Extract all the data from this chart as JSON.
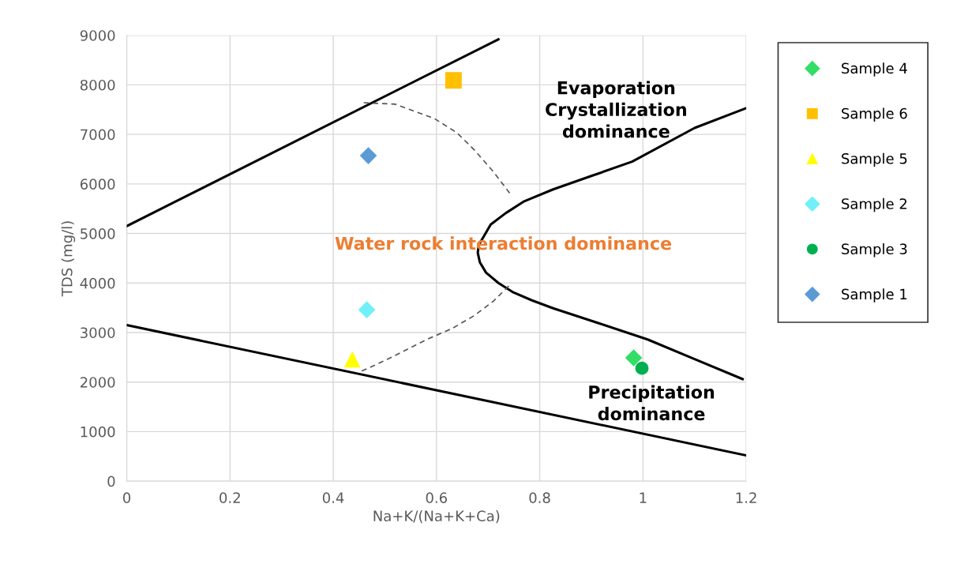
{
  "chart_data": {
    "type": "scatter",
    "xlabel": "Na+K/(Na+K+Ca)",
    "ylabel": "TDS (mg/l)",
    "xlim": [
      0,
      1.2
    ],
    "xticks": [
      0,
      {
        "value": 0.2,
        "label": "0.2"
      },
      {
        "value": 0.4,
        "label": "0.4"
      },
      {
        "value": 0.6,
        "label": "0.6"
      },
      {
        "value": 0.8,
        "label": "0.8"
      },
      1,
      {
        "value": 1.2,
        "label": "1.2"
      }
    ],
    "ylim": [
      0,
      9000
    ],
    "yticks": [
      0,
      1000,
      2000,
      3000,
      4000,
      5000,
      6000,
      7000,
      8000,
      9000
    ],
    "grid": true,
    "legend": "right",
    "series": [
      {
        "name": "Sample 4",
        "marker": "diamond",
        "color": "#33dd66",
        "x": [
          0.982
        ],
        "values": [
          2490
        ]
      },
      {
        "name": "Sample 6",
        "marker": "square",
        "color": "#ffc000",
        "x": [
          0.633
        ],
        "values": [
          8090
        ]
      },
      {
        "name": "Sample 5",
        "marker": "triangle",
        "color": "#ffff00",
        "x": [
          0.437
        ],
        "values": [
          2460
        ]
      },
      {
        "name": "Sample 2",
        "marker": "diamond",
        "color": "#70f0f8",
        "x": [
          0.465
        ],
        "values": [
          3460
        ]
      },
      {
        "name": "Sample 3",
        "marker": "circle",
        "color": "#00b050",
        "x": [
          0.998
        ],
        "values": [
          2280
        ]
      },
      {
        "name": "Sample 1",
        "marker": "diamond",
        "color": "#5b9bd5",
        "x": [
          0.468
        ],
        "values": [
          6570
        ]
      },
      {
        "type": "line",
        "color": "#000000",
        "line_style": "solid",
        "x": [
          0,
          0.72
        ],
        "values": [
          5150,
          8920
        ]
      },
      {
        "type": "line",
        "color": "#000000",
        "line_style": "solid",
        "x": [
          0,
          1.2
        ],
        "values": [
          3150,
          520
        ]
      },
      {
        "type": "line",
        "color": "#000000",
        "line_style": "solid",
        "x": [
          1.2,
          1.1,
          0.979,
          0.9,
          0.826,
          0.77,
          0.734,
          0.705,
          0.691,
          0.682,
          0.68,
          0.684,
          0.696,
          0.72,
          0.749,
          0.785,
          0.826,
          0.917,
          1.009,
          1.101,
          1.193
        ],
        "values": [
          7530,
          7130,
          6450,
          6160,
          5890,
          5650,
          5410,
          5180,
          4930,
          4770,
          4610,
          4420,
          4210,
          4000,
          3810,
          3650,
          3490,
          3180,
          2860,
          2460,
          2060
        ]
      },
      {
        "type": "line",
        "color": "#555555",
        "line_style": "dashed",
        "x": [
          0.459,
          0.52,
          0.596,
          0.64,
          0.673,
          0.71,
          0.745,
          null,
          0.74,
          0.71,
          0.673,
          0.63,
          0.581,
          0.505,
          0.451
        ],
        "values": [
          7640,
          7610,
          7320,
          7030,
          6690,
          6250,
          5770,
          null,
          3940,
          3630,
          3340,
          3080,
          2860,
          2460,
          2200
        ]
      }
    ],
    "annotations": [
      "Evaporation\nCrystallization\ndominance",
      "Water rock interaction dominance",
      "Precipitation\ndominance"
    ]
  }
}
